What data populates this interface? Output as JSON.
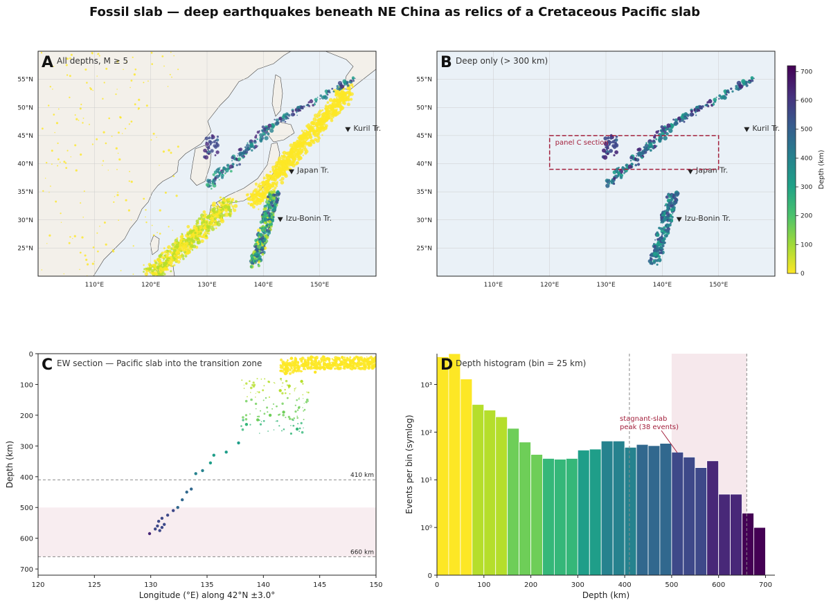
{
  "figure": {
    "title": "Fossil slab — deep earthquakes beneath NE China as relics of a Cretaceous Pacific slab"
  },
  "colors": {
    "land": "#f3f0ea",
    "ocean": "#eaf1f7",
    "coast": "#444444",
    "highlight": "#a3203c",
    "band": "#f5e6ea"
  },
  "panelA": {
    "letter": "A",
    "desc": "All depths, M ≥ 5",
    "lon_ticks": [
      "110°E",
      "120°E",
      "130°E",
      "140°E",
      "150°E"
    ],
    "lat_ticks": [
      "25°N",
      "30°N",
      "35°N",
      "40°N",
      "45°N",
      "50°N",
      "55°N"
    ],
    "trenches": [
      {
        "label": "Kuril Tr.",
        "lon": 155,
        "lat": 46
      },
      {
        "label": "Japan Tr.",
        "lon": 145,
        "lat": 38.5
      },
      {
        "label": "Izu-Bonin Tr.",
        "lon": 143,
        "lat": 30
      }
    ]
  },
  "panelB": {
    "letter": "B",
    "desc": "Deep only (> 300 km)",
    "box_label": "panel C section",
    "box": {
      "lon": [
        120,
        150
      ],
      "lat": [
        39,
        45
      ]
    },
    "colorbar": {
      "label": "Depth (km)",
      "ticks": [
        "0",
        "100",
        "200",
        "300",
        "400",
        "500",
        "600",
        "700"
      ],
      "range": [
        0,
        720
      ]
    }
  },
  "panelC": {
    "letter": "C",
    "desc": "EW section — Pacific slab into the transition zone",
    "xlabel": "Longitude (°E) along 42°N ±3.0°",
    "ylabel": "Depth (km)",
    "x_ticks": [
      "120",
      "125",
      "130",
      "135",
      "140",
      "145",
      "150"
    ],
    "y_ticks": [
      "0",
      "100",
      "200",
      "300",
      "400",
      "500",
      "600",
      "700"
    ],
    "line410": "410 km",
    "line660": "660 km"
  },
  "panelD": {
    "letter": "D",
    "desc": "Depth histogram (bin = 25 km)",
    "xlabel": "Depth (km)",
    "ylabel": "Events per bin (symlog)",
    "x_ticks": [
      "0",
      "100",
      "200",
      "300",
      "400",
      "500",
      "600",
      "700"
    ],
    "annotation_line1": "stagnant-slab",
    "annotation_line2": "peak (38 events)"
  },
  "chart_data": [
    {
      "type": "scatter",
      "panel": "A",
      "title": "All depths, M ≥ 5",
      "xlim": [
        100,
        160
      ],
      "ylim": [
        20,
        60
      ],
      "color_encoding": "depth (km)"
    },
    {
      "type": "scatter",
      "panel": "B",
      "title": "Deep only (> 300 km)",
      "xlim": [
        100,
        160
      ],
      "ylim": [
        20,
        60
      ],
      "color_encoding": "depth (km)",
      "colorbar_range": [
        0,
        720
      ]
    },
    {
      "type": "scatter",
      "panel": "C",
      "title": "EW section — Pacific slab into the transition zone",
      "xlabel": "Longitude (°E) along 42°N ±3.0°",
      "ylabel": "Depth (km)",
      "xlim": [
        120,
        150
      ],
      "ylim": [
        720,
        0
      ],
      "reference_lines": [
        410,
        660
      ],
      "shaded_band": [
        500,
        660
      ],
      "points": [
        {
          "lon": 129.9,
          "depth": 585
        },
        {
          "lon": 130.4,
          "depth": 570
        },
        {
          "lon": 130.6,
          "depth": 560
        },
        {
          "lon": 130.8,
          "depth": 575
        },
        {
          "lon": 131.0,
          "depth": 565
        },
        {
          "lon": 130.7,
          "depth": 545
        },
        {
          "lon": 131.2,
          "depth": 555
        },
        {
          "lon": 131.0,
          "depth": 535
        },
        {
          "lon": 131.5,
          "depth": 525
        },
        {
          "lon": 132.0,
          "depth": 510
        },
        {
          "lon": 132.4,
          "depth": 500
        },
        {
          "lon": 132.8,
          "depth": 475
        },
        {
          "lon": 133.2,
          "depth": 450
        },
        {
          "lon": 133.6,
          "depth": 440
        },
        {
          "lon": 134.0,
          "depth": 390
        },
        {
          "lon": 134.6,
          "depth": 380
        },
        {
          "lon": 135.3,
          "depth": 355
        },
        {
          "lon": 135.6,
          "depth": 330
        },
        {
          "lon": 136.7,
          "depth": 320
        },
        {
          "lon": 137.8,
          "depth": 290
        },
        {
          "lon": 138.5,
          "depth": 230
        },
        {
          "lon": 139.5,
          "depth": 215
        },
        {
          "lon": 140.6,
          "depth": 200
        },
        {
          "lon": 141.8,
          "depth": 190
        },
        {
          "lon": 143.0,
          "depth": 245
        },
        {
          "lon": 141.5,
          "depth": 120
        },
        {
          "lon": 142.3,
          "depth": 105
        },
        {
          "lon": 143.4,
          "depth": 90
        },
        {
          "lon": 144.6,
          "depth": 60
        },
        {
          "lon": 145.7,
          "depth": 45
        },
        {
          "lon": 146.8,
          "depth": 35
        },
        {
          "lon": 148.0,
          "depth": 30
        },
        {
          "lon": 149.0,
          "depth": 40
        },
        {
          "lon": 142.5,
          "depth": 15
        },
        {
          "lon": 144.0,
          "depth": 20
        },
        {
          "lon": 147.0,
          "depth": 12
        }
      ]
    },
    {
      "type": "bar",
      "panel": "D",
      "title": "Depth histogram (bin = 25 km)",
      "xlabel": "Depth (km)",
      "ylabel": "Events per bin (symlog)",
      "bin_width": 25,
      "xlim": [
        0,
        720
      ],
      "yscale": "symlog",
      "reference_lines": [
        410,
        660
      ],
      "shaded_band": [
        500,
        660
      ],
      "bin_starts": [
        0,
        25,
        50,
        75,
        100,
        125,
        150,
        175,
        200,
        225,
        250,
        275,
        300,
        325,
        350,
        375,
        400,
        425,
        450,
        475,
        500,
        525,
        550,
        575,
        600,
        625,
        650,
        675
      ],
      "values": [
        3800,
        5500,
        1300,
        380,
        290,
        210,
        120,
        62,
        34,
        28,
        27,
        28,
        42,
        44,
        65,
        65,
        48,
        55,
        52,
        58,
        38,
        30,
        18,
        25,
        5,
        5,
        2,
        1
      ],
      "annotation": "stagnant-slab peak (38 events)"
    }
  ]
}
